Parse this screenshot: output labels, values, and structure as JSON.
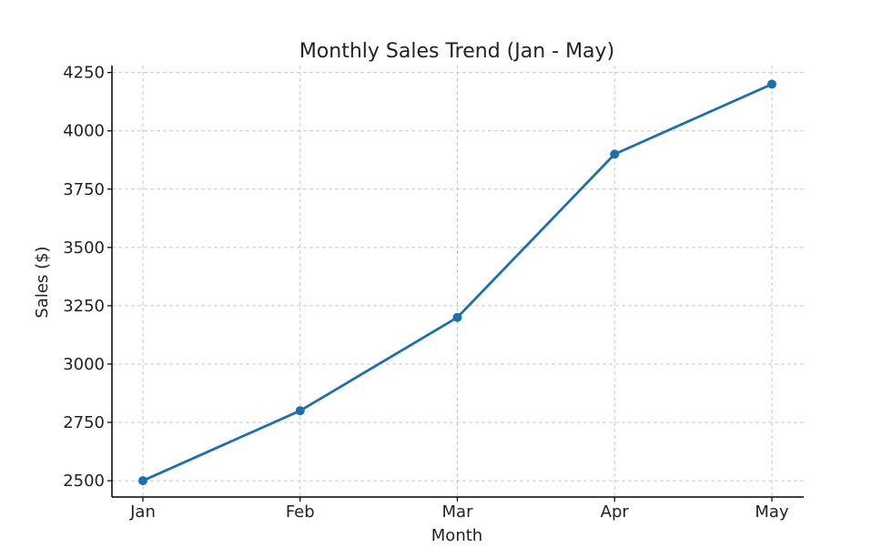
{
  "chart_data": {
    "type": "line",
    "title": "Monthly Sales Trend (Jan - May)",
    "xlabel": "Month",
    "ylabel": "Sales ($)",
    "categories": [
      "Jan",
      "Feb",
      "Mar",
      "Apr",
      "May"
    ],
    "series": [
      {
        "values": [
          2500,
          2800,
          3200,
          3900,
          4200
        ],
        "color": "#1f6fab",
        "marker": "circle"
      }
    ],
    "ylim": [
      2430,
      4280
    ],
    "yticks": [
      2500,
      2750,
      3000,
      3250,
      3500,
      3750,
      4000,
      4250
    ],
    "grid": true,
    "grid_style": "dashed"
  }
}
